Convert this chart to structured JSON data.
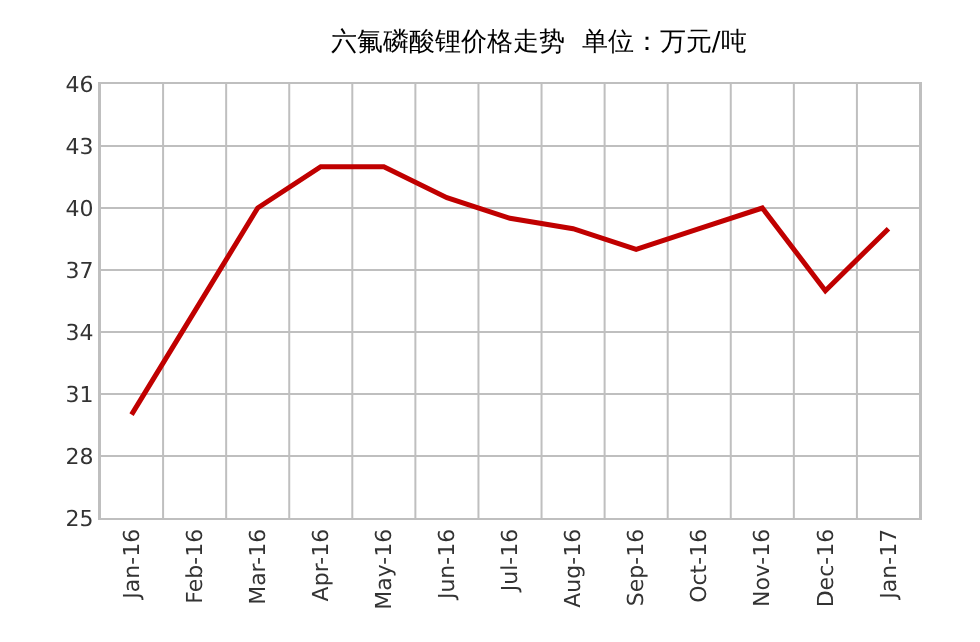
{
  "chart_data": {
    "type": "line",
    "title": "六氟磷酸锂价格走势  单位：万元/吨",
    "categories": [
      "Jan-16",
      "Feb-16",
      "Mar-16",
      "Apr-16",
      "May-16",
      "Jun-16",
      "Jul-16",
      "Aug-16",
      "Sep-16",
      "Oct-16",
      "Nov-16",
      "Dec-16",
      "Jan-17"
    ],
    "series": [
      {
        "color": "#c00000",
        "values": [
          30,
          35,
          40,
          42,
          42,
          40.5,
          39.5,
          39,
          38,
          39,
          40,
          36,
          39
        ]
      }
    ],
    "ylim": [
      25,
      46
    ],
    "yticks": [
      25,
      28,
      31,
      34,
      37,
      40,
      43,
      46
    ],
    "grid": true,
    "marker": "none",
    "line_style": "solid",
    "legend": false
  }
}
